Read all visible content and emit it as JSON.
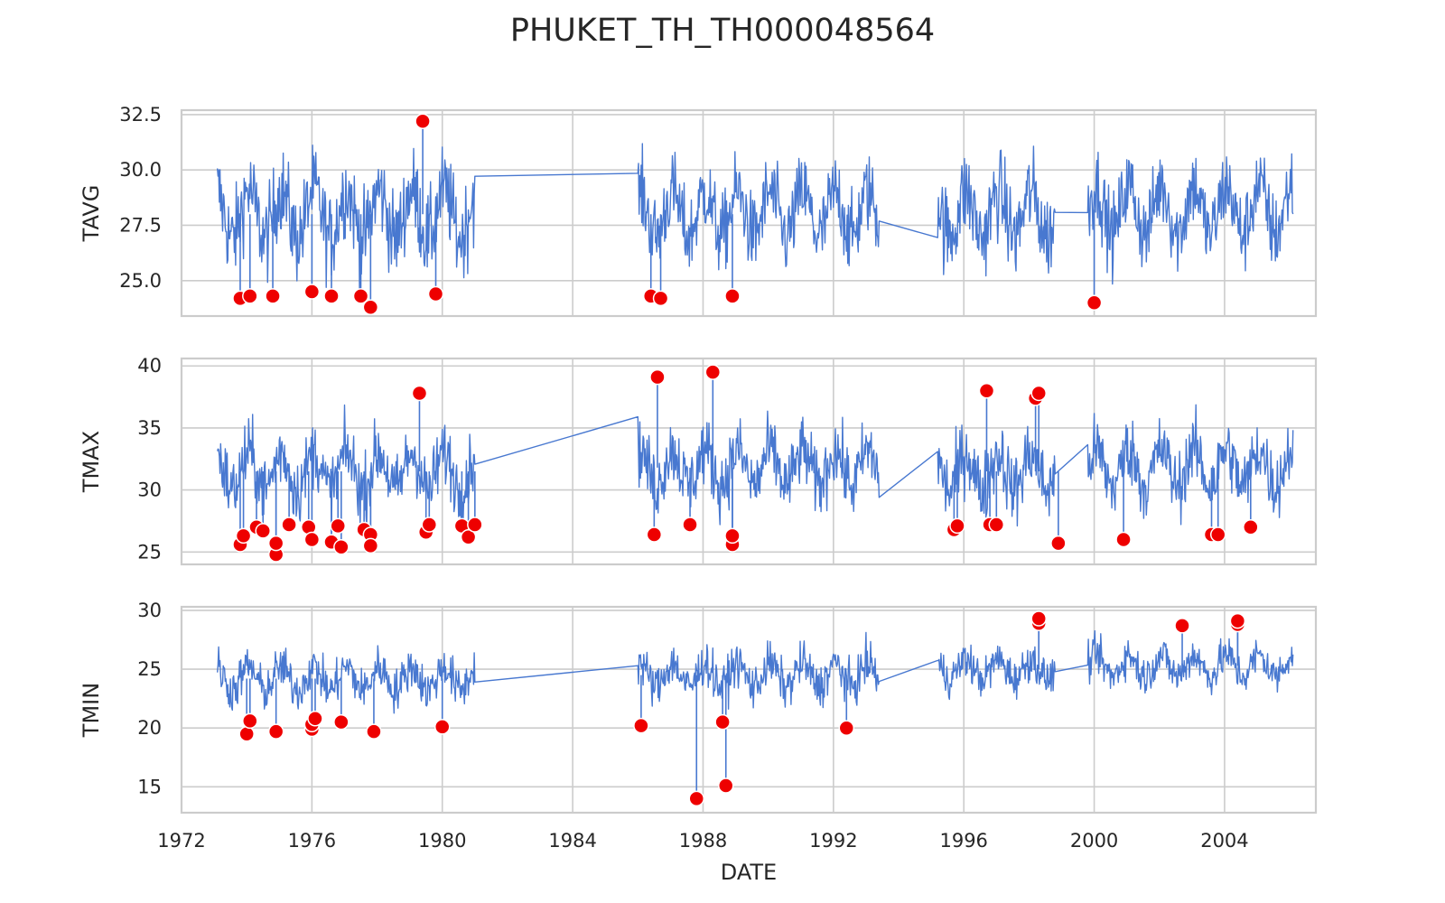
{
  "figure": {
    "title": "PHUKET_TH_TH000048564"
  },
  "chart_data": [
    {
      "type": "line",
      "ylabel": "TAVG",
      "xlabel": "DATE",
      "ylim": [
        23.4,
        32.7
      ],
      "yticks": [
        25.0,
        27.5,
        30.0,
        32.5
      ],
      "ytick_labels": [
        "25.0",
        "27.5",
        "30.0",
        "32.5"
      ],
      "xlim": [
        1972.0,
        2006.8
      ],
      "xticks": [
        1972,
        1976,
        1980,
        1984,
        1988,
        1992,
        1996,
        2000,
        2004
      ],
      "grid": true,
      "segments": [
        {
          "start": 1973.1,
          "end": 1981.0,
          "mean": 28.0,
          "amp": 1.1,
          "noise": 2.2
        },
        {
          "start": 1986.0,
          "end": 1993.4,
          "mean": 28.0,
          "amp": 1.0,
          "noise": 2.0
        },
        {
          "start": 1995.2,
          "end": 1998.8,
          "mean": 28.0,
          "amp": 1.0,
          "noise": 2.2
        },
        {
          "start": 1999.8,
          "end": 2006.1,
          "mean": 28.2,
          "amp": 1.1,
          "noise": 2.0
        }
      ],
      "anomalies": [
        {
          "x": 1973.8,
          "y": 24.2
        },
        {
          "x": 1974.1,
          "y": 24.3
        },
        {
          "x": 1974.8,
          "y": 24.3
        },
        {
          "x": 1976.0,
          "y": 24.5
        },
        {
          "x": 1976.6,
          "y": 24.3
        },
        {
          "x": 1977.5,
          "y": 24.3
        },
        {
          "x": 1977.8,
          "y": 23.8
        },
        {
          "x": 1979.4,
          "y": 32.2
        },
        {
          "x": 1979.8,
          "y": 24.4
        },
        {
          "x": 1986.4,
          "y": 24.3
        },
        {
          "x": 1986.7,
          "y": 24.2
        },
        {
          "x": 1988.9,
          "y": 24.3
        },
        {
          "x": 2000.0,
          "y": 24.0
        }
      ]
    },
    {
      "type": "line",
      "ylabel": "TMAX",
      "xlabel": "DATE",
      "ylim": [
        24.0,
        40.6
      ],
      "yticks": [
        25,
        30,
        35,
        40
      ],
      "ytick_labels": [
        "25",
        "30",
        "35",
        "40"
      ],
      "xlim": [
        1972.0,
        2006.8
      ],
      "xticks": [
        1972,
        1976,
        1980,
        1984,
        1988,
        1992,
        1996,
        2000,
        2004
      ],
      "grid": true,
      "segments": [
        {
          "start": 1973.1,
          "end": 1981.0,
          "mean": 31.5,
          "amp": 1.5,
          "noise": 3.0
        },
        {
          "start": 1986.0,
          "end": 1993.4,
          "mean": 31.8,
          "amp": 1.4,
          "noise": 3.0
        },
        {
          "start": 1995.2,
          "end": 1998.8,
          "mean": 31.5,
          "amp": 1.5,
          "noise": 3.2
        },
        {
          "start": 1999.8,
          "end": 2006.1,
          "mean": 31.8,
          "amp": 1.5,
          "noise": 3.0
        }
      ],
      "anomalies": [
        {
          "x": 1973.8,
          "y": 25.6
        },
        {
          "x": 1973.9,
          "y": 26.3
        },
        {
          "x": 1974.3,
          "y": 27.0
        },
        {
          "x": 1974.5,
          "y": 26.7
        },
        {
          "x": 1974.9,
          "y": 24.8
        },
        {
          "x": 1974.9,
          "y": 25.7
        },
        {
          "x": 1975.3,
          "y": 27.2
        },
        {
          "x": 1975.9,
          "y": 27.0
        },
        {
          "x": 1976.0,
          "y": 26.0
        },
        {
          "x": 1976.6,
          "y": 25.8
        },
        {
          "x": 1976.8,
          "y": 27.1
        },
        {
          "x": 1976.9,
          "y": 25.4
        },
        {
          "x": 1977.6,
          "y": 26.8
        },
        {
          "x": 1977.8,
          "y": 26.4
        },
        {
          "x": 1977.8,
          "y": 25.5
        },
        {
          "x": 1979.3,
          "y": 37.8
        },
        {
          "x": 1979.5,
          "y": 26.6
        },
        {
          "x": 1979.6,
          "y": 27.2
        },
        {
          "x": 1980.6,
          "y": 27.1
        },
        {
          "x": 1980.8,
          "y": 26.2
        },
        {
          "x": 1981.0,
          "y": 27.2
        },
        {
          "x": 1986.5,
          "y": 26.4
        },
        {
          "x": 1986.6,
          "y": 39.1
        },
        {
          "x": 1987.6,
          "y": 27.2
        },
        {
          "x": 1988.3,
          "y": 39.5
        },
        {
          "x": 1988.9,
          "y": 25.6
        },
        {
          "x": 1988.9,
          "y": 26.3
        },
        {
          "x": 1995.7,
          "y": 26.8
        },
        {
          "x": 1995.8,
          "y": 27.1
        },
        {
          "x": 1996.7,
          "y": 38.0
        },
        {
          "x": 1996.8,
          "y": 27.2
        },
        {
          "x": 1997.0,
          "y": 27.2
        },
        {
          "x": 1998.2,
          "y": 37.4
        },
        {
          "x": 1998.3,
          "y": 37.8
        },
        {
          "x": 1998.9,
          "y": 25.7
        },
        {
          "x": 2000.9,
          "y": 26.0
        },
        {
          "x": 2003.6,
          "y": 26.4
        },
        {
          "x": 2003.8,
          "y": 26.4
        },
        {
          "x": 2004.8,
          "y": 27.0
        }
      ]
    },
    {
      "type": "line",
      "ylabel": "TMIN",
      "xlabel": "DATE",
      "ylim": [
        12.8,
        30.3
      ],
      "yticks": [
        15,
        20,
        25,
        30
      ],
      "ytick_labels": [
        "15",
        "20",
        "25",
        "30"
      ],
      "xlim": [
        1972.0,
        2006.8
      ],
      "xticks": [
        1972,
        1976,
        1980,
        1984,
        1988,
        1992,
        1996,
        2000,
        2004
      ],
      "xtick_labels": [
        "1972",
        "1976",
        "1980",
        "1984",
        "1988",
        "1992",
        "1996",
        "2000",
        "2004"
      ],
      "grid": true,
      "segments": [
        {
          "start": 1973.1,
          "end": 1981.0,
          "mean": 24.2,
          "amp": 1.0,
          "noise": 2.0
        },
        {
          "start": 1986.0,
          "end": 1993.4,
          "mean": 24.5,
          "amp": 1.0,
          "noise": 2.0
        },
        {
          "start": 1995.2,
          "end": 1998.8,
          "mean": 25.0,
          "amp": 0.8,
          "noise": 1.8
        },
        {
          "start": 1999.8,
          "end": 2006.1,
          "mean": 25.3,
          "amp": 0.9,
          "noise": 1.8
        }
      ],
      "anomalies": [
        {
          "x": 1974.0,
          "y": 19.5
        },
        {
          "x": 1974.1,
          "y": 20.6
        },
        {
          "x": 1974.9,
          "y": 19.7
        },
        {
          "x": 1976.0,
          "y": 19.9
        },
        {
          "x": 1976.0,
          "y": 20.3
        },
        {
          "x": 1976.1,
          "y": 20.8
        },
        {
          "x": 1976.9,
          "y": 20.5
        },
        {
          "x": 1977.9,
          "y": 19.7
        },
        {
          "x": 1980.0,
          "y": 20.1
        },
        {
          "x": 1986.1,
          "y": 20.2
        },
        {
          "x": 1987.8,
          "y": 14.0
        },
        {
          "x": 1988.6,
          "y": 20.5
        },
        {
          "x": 1988.7,
          "y": 15.1
        },
        {
          "x": 1992.4,
          "y": 20.0
        },
        {
          "x": 1998.3,
          "y": 28.9
        },
        {
          "x": 1998.3,
          "y": 29.3
        },
        {
          "x": 2002.7,
          "y": 28.7
        },
        {
          "x": 2004.4,
          "y": 28.8
        },
        {
          "x": 2004.4,
          "y": 29.1
        }
      ]
    }
  ],
  "colors": {
    "line": "#4878d0",
    "anomaly": "#ee0000",
    "grid": "#cccccc",
    "spine": "#cccccc"
  }
}
